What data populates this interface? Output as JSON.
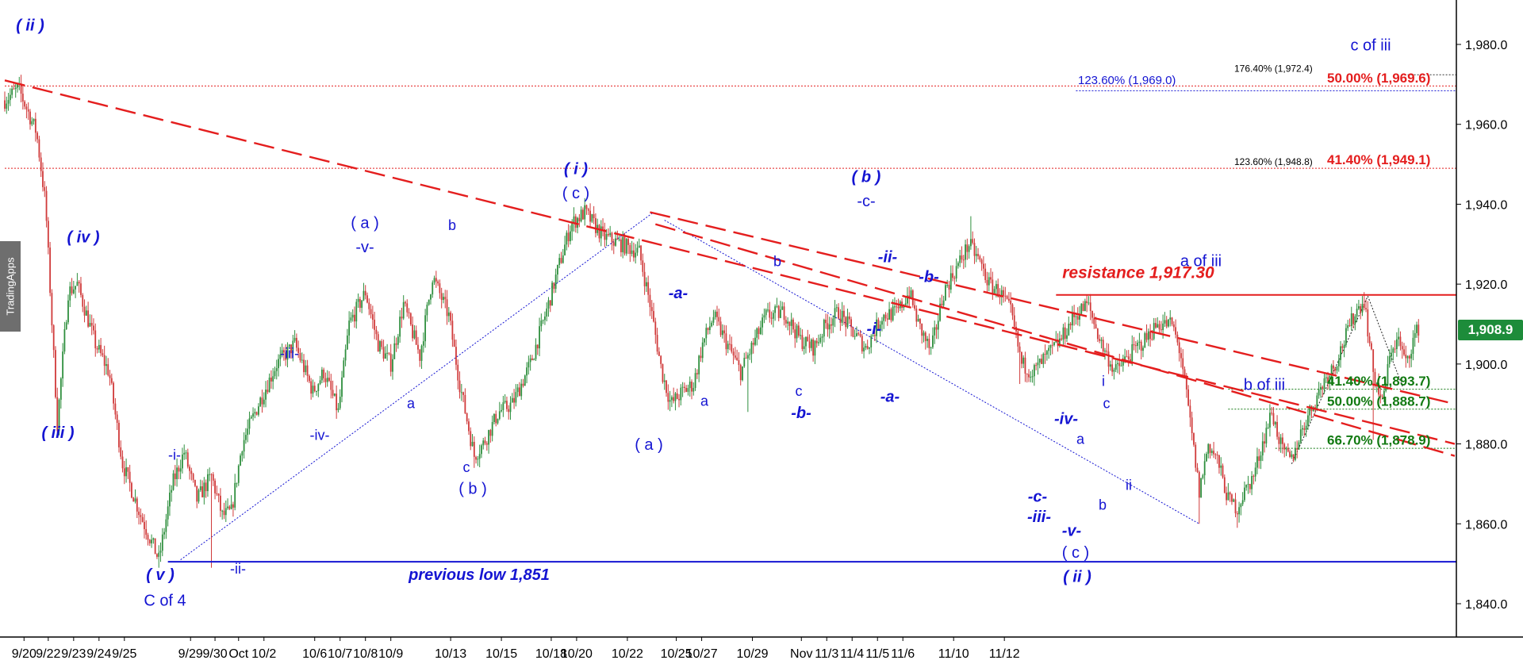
{
  "watermark": "TradingApps",
  "last_price_label": "1,908.9",
  "colors": {
    "bull": "#2f8f3e",
    "bear": "#d03a3a",
    "trendline": "#e41e1e",
    "wave_label": "#1414d2",
    "support": "#1414d2",
    "fib_green": "#127a12",
    "fib_red": "#e41e1e",
    "fib_blue": "#1414d2"
  },
  "chart_data": {
    "type": "candlestick",
    "y_axis": {
      "min": 1830,
      "max": 1995,
      "ticks": [
        1840,
        1860,
        1880,
        1900,
        1920,
        1940,
        1960,
        1980
      ],
      "tick_labels": [
        "1,840.0",
        "1,860.0",
        "1,880.0",
        "1,900.0",
        "1,920.0",
        "1,940.0",
        "1,960.0",
        "1,980.0"
      ],
      "position": "right"
    },
    "x_axis": {
      "labels": [
        "9/20",
        "9/22",
        "9/23",
        "9/24",
        "9/25",
        "9/29",
        "9/30",
        "Oct",
        "10/2",
        "10/6",
        "10/7",
        "10/8",
        "10/9",
        "10/13",
        "10/15",
        "10/18",
        "10/20",
        "10/22",
        "10/25",
        "10/27",
        "10/29",
        "Nov",
        "11/3",
        "11/4",
        "11/5",
        "11/6",
        "11/10",
        "11/12"
      ],
      "label_index": [
        2,
        48,
        76,
        104,
        132,
        205,
        232,
        258,
        286,
        342,
        370,
        398,
        426,
        492,
        548,
        603,
        631,
        687,
        741,
        769,
        825,
        879,
        907,
        935,
        963,
        991,
        1047,
        1103
      ]
    },
    "anchors": [
      [
        0,
        1966
      ],
      [
        15,
        1969
      ],
      [
        35,
        1958
      ],
      [
        45,
        1940
      ],
      [
        58,
        1885
      ],
      [
        70,
        1918
      ],
      [
        80,
        1920
      ],
      [
        100,
        1905
      ],
      [
        115,
        1898
      ],
      [
        130,
        1875
      ],
      [
        150,
        1862
      ],
      [
        170,
        1851
      ],
      [
        185,
        1870
      ],
      [
        198,
        1878
      ],
      [
        212,
        1866
      ],
      [
        228,
        1872
      ],
      [
        240,
        1862
      ],
      [
        250,
        1863
      ],
      [
        262,
        1880
      ],
      [
        280,
        1890
      ],
      [
        300,
        1900
      ],
      [
        320,
        1905
      ],
      [
        340,
        1893
      ],
      [
        352,
        1898
      ],
      [
        368,
        1888
      ],
      [
        380,
        1910
      ],
      [
        398,
        1918
      ],
      [
        412,
        1905
      ],
      [
        426,
        1900
      ],
      [
        440,
        1915
      ],
      [
        458,
        1902
      ],
      [
        472,
        1922
      ],
      [
        490,
        1912
      ],
      [
        502,
        1895
      ],
      [
        518,
        1877
      ],
      [
        528,
        1880
      ],
      [
        545,
        1888
      ],
      [
        560,
        1890
      ],
      [
        580,
        1900
      ],
      [
        600,
        1915
      ],
      [
        612,
        1925
      ],
      [
        625,
        1935
      ],
      [
        640,
        1938
      ],
      [
        660,
        1932
      ],
      [
        680,
        1930
      ],
      [
        700,
        1928
      ],
      [
        712,
        1915
      ],
      [
        725,
        1898
      ],
      [
        735,
        1890
      ],
      [
        748,
        1893
      ],
      [
        760,
        1895
      ],
      [
        770,
        1905
      ],
      [
        782,
        1912
      ],
      [
        795,
        1906
      ],
      [
        812,
        1898
      ],
      [
        826,
        1905
      ],
      [
        840,
        1912
      ],
      [
        860,
        1913
      ],
      [
        878,
        1906
      ],
      [
        893,
        1904
      ],
      [
        906,
        1910
      ],
      [
        920,
        1913
      ],
      [
        936,
        1908
      ],
      [
        950,
        1904
      ],
      [
        968,
        1912
      ],
      [
        985,
        1913
      ],
      [
        998,
        1918
      ],
      [
        1008,
        1910
      ],
      [
        1022,
        1903
      ],
      [
        1036,
        1918
      ],
      [
        1050,
        1924
      ],
      [
        1064,
        1930
      ],
      [
        1075,
        1926
      ],
      [
        1086,
        1920
      ],
      [
        1098,
        1918
      ],
      [
        1110,
        1913
      ],
      [
        1122,
        1900
      ],
      [
        1135,
        1898
      ],
      [
        1150,
        1902
      ],
      [
        1165,
        1906
      ],
      [
        1180,
        1912
      ],
      [
        1195,
        1915
      ],
      [
        1210,
        1905
      ],
      [
        1225,
        1898
      ],
      [
        1240,
        1902
      ],
      [
        1258,
        1906
      ],
      [
        1272,
        1910
      ],
      [
        1288,
        1910
      ],
      [
        1298,
        1902
      ],
      [
        1310,
        1882
      ],
      [
        1318,
        1868
      ],
      [
        1328,
        1880
      ],
      [
        1338,
        1876
      ],
      [
        1350,
        1866
      ],
      [
        1360,
        1864
      ],
      [
        1368,
        1868
      ],
      [
        1378,
        1872
      ],
      [
        1390,
        1882
      ],
      [
        1398,
        1888
      ],
      [
        1410,
        1878
      ],
      [
        1420,
        1876
      ],
      [
        1432,
        1884
      ],
      [
        1444,
        1890
      ],
      [
        1456,
        1896
      ],
      [
        1468,
        1900
      ],
      [
        1480,
        1907
      ],
      [
        1490,
        1913
      ],
      [
        1500,
        1916
      ],
      [
        1510,
        1898
      ],
      [
        1520,
        1890
      ],
      [
        1530,
        1904
      ],
      [
        1538,
        1906
      ],
      [
        1546,
        1900
      ],
      [
        1554,
        1906
      ],
      [
        1560,
        1909
      ]
    ],
    "wicks": {
      "1510": 1881,
      "1500": 1918,
      "1360": 1859,
      "1318": 1860,
      "170": 1849,
      "228": 1849,
      "58": 1883,
      "20": 1970,
      "625": 1939,
      "640": 1940,
      "1066": 1937,
      "518": 1874,
      "725": 1888,
      "820": 1888,
      "1120": 1895,
      "1098": 1919,
      "735": 1885
    },
    "last_price": 1908.9
  },
  "overlays": {
    "trendlines": [
      {
        "name": "upper-trendline",
        "from": [
          0,
          1971
        ],
        "to": [
          1600,
          1880
        ]
      },
      {
        "name": "middle-trendline",
        "from": [
          712,
          1938
        ],
        "to": [
          1600,
          1890
        ]
      },
      {
        "name": "lower-trendline",
        "from": [
          718,
          1935
        ],
        "to": [
          1600,
          1877
        ]
      }
    ],
    "resistance": {
      "from_index": 1160,
      "to_index": 1600,
      "value": 1917.3,
      "label": "resistance 1,917.30"
    },
    "support": {
      "from_index": 180,
      "to_index": 1600,
      "value": 1850.5,
      "label": "previous low 1,851"
    },
    "dotted_levels": [
      {
        "value": 1969.6,
        "from_index": 0,
        "to_index": 1600
      },
      {
        "value": 1949.0,
        "from_index": 0,
        "to_index": 1600
      },
      {
        "value": 1972.4,
        "from_index": 1548,
        "to_index": 1600
      },
      {
        "value": 1893.7,
        "from_index": 1350,
        "to_index": 1600
      },
      {
        "value": 1888.7,
        "from_index": 1350,
        "to_index": 1600
      },
      {
        "value": 1878.9,
        "from_index": 1402,
        "to_index": 1600
      }
    ],
    "diagonals": [
      {
        "from": [
          194,
          1851
        ],
        "to": [
          716,
          1938
        ],
        "color": "blue"
      },
      {
        "from": [
          728,
          1936
        ],
        "to": [
          1318,
          1860
        ],
        "color": "blue"
      },
      {
        "from": [
          1420,
          1875
        ],
        "to": [
          1504,
          1917
        ],
        "color": "black"
      },
      {
        "from": [
          1504,
          1917
        ],
        "to": [
          1543,
          1894
        ],
        "color": "black"
      }
    ],
    "fib_labels": [
      {
        "text": "176.40% (1,972.4)",
        "x": 1556,
        "value": 1972.6,
        "color": "black",
        "size": "small"
      },
      {
        "text": "50.00% (1,969.6)",
        "x": 1673,
        "value": 1969.9,
        "color": "red",
        "size": "big"
      },
      {
        "text": "123.60% (1,969.0)",
        "x": 1359,
        "value": 1969.5,
        "color": "blue",
        "size": "blue"
      },
      {
        "text": "123.60% (1,948.8)",
        "x": 1556,
        "value": 1949.2,
        "color": "black",
        "size": "small"
      },
      {
        "text": "41.40% (1,949.1)",
        "x": 1673,
        "value": 1949.4,
        "color": "red",
        "size": "big"
      },
      {
        "text": "41.40% (1,893.7)",
        "x": 1673,
        "value": 1894.0,
        "color": "green",
        "size": "big"
      },
      {
        "text": "50.00% (1,888.7)",
        "x": 1673,
        "value": 1889.0,
        "color": "green",
        "size": "big"
      },
      {
        "text": "66.70% (1,878.9)",
        "x": 1673,
        "value": 1879.2,
        "color": "green",
        "size": "big"
      }
    ],
    "wave_labels": [
      {
        "text": "( ii )",
        "x": 38,
        "value": 1983.5,
        "style": "it"
      },
      {
        "text": "( iv )",
        "x": 105,
        "value": 1930.5,
        "style": "it"
      },
      {
        "text": "( iii )",
        "x": 73,
        "value": 1881.5,
        "style": "it"
      },
      {
        "text": "-i-",
        "x": 220,
        "value": 1876.0,
        "style": "sm"
      },
      {
        "text": "( v )",
        "x": 202,
        "value": 1846.0,
        "style": "it"
      },
      {
        "text": "C of 4",
        "x": 208,
        "value": 1839.5,
        "style": "plain"
      },
      {
        "text": "-ii-",
        "x": 300,
        "value": 1847.5,
        "style": "sm"
      },
      {
        "text": "-iii-",
        "x": 365,
        "value": 1901.5,
        "style": "sm"
      },
      {
        "text": "-iv-",
        "x": 403,
        "value": 1881.0,
        "style": "sm"
      },
      {
        "text": "( a )",
        "x": 460,
        "value": 1934.0,
        "style": "plain"
      },
      {
        "text": "-v-",
        "x": 460,
        "value": 1928.0,
        "style": "plain"
      },
      {
        "text": "b",
        "x": 570,
        "value": 1933.5,
        "style": "sm"
      },
      {
        "text": "a",
        "x": 518,
        "value": 1889.0,
        "style": "sm"
      },
      {
        "text": "c",
        "x": 588,
        "value": 1873.0,
        "style": "sm"
      },
      {
        "text": "( b )",
        "x": 596,
        "value": 1867.5,
        "style": "plain"
      },
      {
        "text": "previous low 1,851",
        "x": 604,
        "value": 1846.0,
        "style": "it"
      },
      {
        "text": "( i )",
        "x": 726,
        "value": 1947.5,
        "style": "it"
      },
      {
        "text": "( c )",
        "x": 726,
        "value": 1941.5,
        "style": "plain"
      },
      {
        "text": "( a )",
        "x": 818,
        "value": 1878.5,
        "style": "plain"
      },
      {
        "text": "-a-",
        "x": 855,
        "value": 1916.5,
        "style": "it"
      },
      {
        "text": "a",
        "x": 888,
        "value": 1889.5,
        "style": "sm"
      },
      {
        "text": "b",
        "x": 980,
        "value": 1924.5,
        "style": "sm"
      },
      {
        "text": "c",
        "x": 1007,
        "value": 1892.0,
        "style": "sm"
      },
      {
        "text": "-b-",
        "x": 1010,
        "value": 1886.5,
        "style": "it"
      },
      {
        "text": "( b )",
        "x": 1092,
        "value": 1945.5,
        "style": "it"
      },
      {
        "text": "-c-",
        "x": 1092,
        "value": 1939.5,
        "style": "plain"
      },
      {
        "text": "-ii-",
        "x": 1119,
        "value": 1925.5,
        "style": "it"
      },
      {
        "text": "-b-",
        "x": 1171,
        "value": 1920.5,
        "style": "it"
      },
      {
        "text": "-i-",
        "x": 1102,
        "value": 1907.5,
        "style": "it"
      },
      {
        "text": "-a-",
        "x": 1122,
        "value": 1890.5,
        "style": "it"
      },
      {
        "text": "a of iii",
        "x": 1514,
        "value": 1924.5,
        "style": "plain"
      },
      {
        "text": "c of iii",
        "x": 1728,
        "value": 1978.5,
        "style": "plain"
      },
      {
        "text": "b of iii",
        "x": 1594,
        "value": 1893.5,
        "style": "plain"
      },
      {
        "text": "i",
        "x": 1391,
        "value": 1894.5,
        "style": "sm"
      },
      {
        "text": "c",
        "x": 1395,
        "value": 1889.0,
        "style": "sm"
      },
      {
        "text": "-iv-",
        "x": 1344,
        "value": 1885.0,
        "style": "it"
      },
      {
        "text": "a",
        "x": 1362,
        "value": 1880.0,
        "style": "sm"
      },
      {
        "text": "ii",
        "x": 1423,
        "value": 1868.5,
        "style": "sm"
      },
      {
        "text": "b",
        "x": 1390,
        "value": 1863.5,
        "style": "sm"
      },
      {
        "text": "-c-",
        "x": 1308,
        "value": 1865.5,
        "style": "it"
      },
      {
        "text": "-iii-",
        "x": 1310,
        "value": 1860.5,
        "style": "it"
      },
      {
        "text": "-v-",
        "x": 1351,
        "value": 1857.0,
        "style": "it"
      },
      {
        "text": "( c )",
        "x": 1356,
        "value": 1851.5,
        "style": "plain"
      },
      {
        "text": "( ii )",
        "x": 1358,
        "value": 1845.5,
        "style": "it"
      },
      {
        "text": "resistance 1,917.30",
        "x": 1435,
        "value": 1921.5,
        "style": "it"
      }
    ]
  }
}
